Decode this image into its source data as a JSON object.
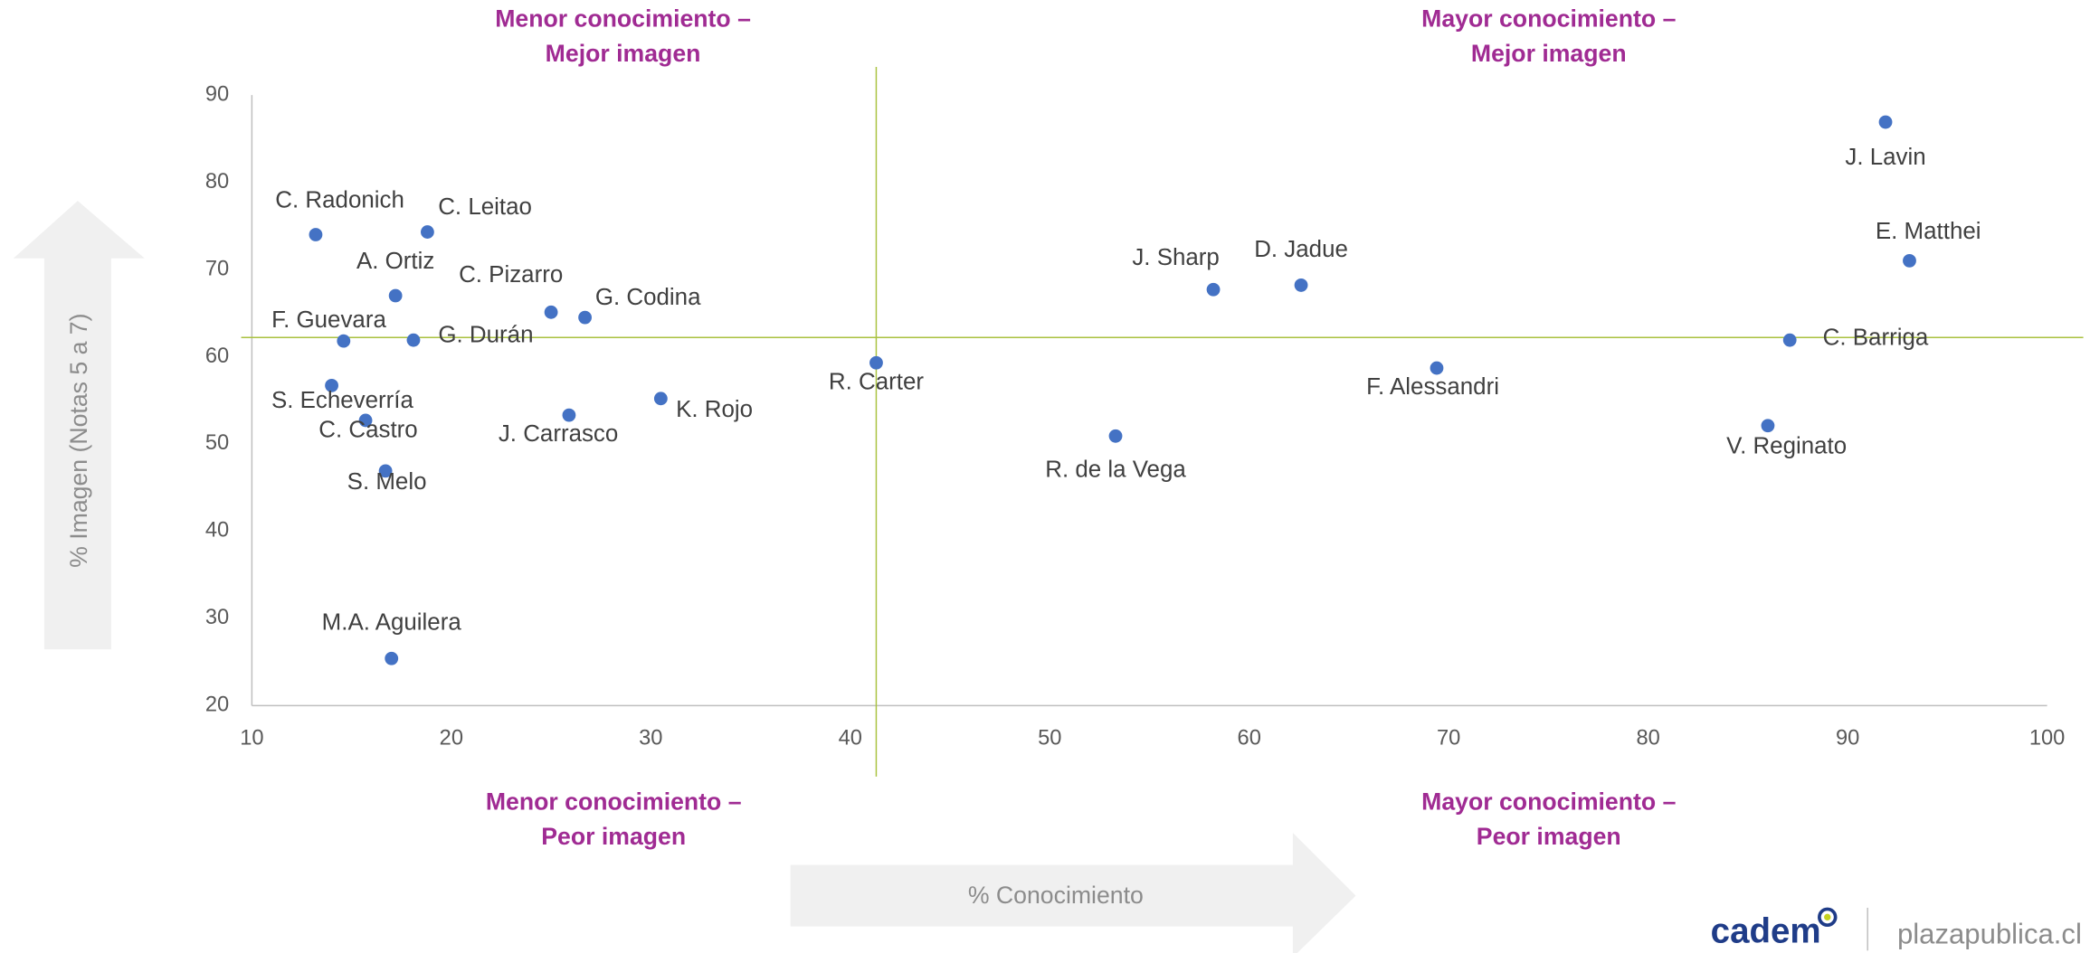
{
  "chart_data": {
    "type": "scatter",
    "x_label": "% Conocimiento",
    "y_label": "% Imagen (Notas 5 a 7)",
    "annotations": [
      [
        "Menor conocimiento –",
        "Mejor imagen"
      ],
      [
        "Mayor conocimiento –",
        "Mejor imagen"
      ],
      [
        "Menor conocimiento –",
        "Peor imagen"
      ],
      [
        "Mayor conocimiento –",
        "Peor imagen"
      ]
    ],
    "labels": [
      "C. Radonich",
      "C. Leitao",
      "A. Ortiz",
      "C. Pizarro",
      "G. Codina",
      "F. Guevara",
      "G. Durán",
      "S. Echeverría",
      "C. Castro",
      "S. Melo",
      "J. Carrasco",
      "K. Rojo",
      "M.A. Aguilera",
      "R. Carter",
      "R. de la Vega",
      "J. Sharp",
      "D. Jadue",
      "F. Alessandri",
      "J. Lavin",
      "E. Matthei",
      "C. Barriga",
      "V. Reginato"
    ],
    "x": [
      13.2,
      18.8,
      17.2,
      25.0,
      26.7,
      14.6,
      18.1,
      14.0,
      15.7,
      16.7,
      25.9,
      30.5,
      17.0,
      41.3,
      53.3,
      58.2,
      62.6,
      69.4,
      91.9,
      93.1,
      87.1,
      86.0
    ],
    "values": [
      74.0,
      74.3,
      67.0,
      65.1,
      64.5,
      61.8,
      61.9,
      56.7,
      52.7,
      46.9,
      53.3,
      55.2,
      25.4,
      59.3,
      50.9,
      67.7,
      68.2,
      58.7,
      86.9,
      71.0,
      61.9,
      52.1
    ],
    "color": "#4472c4",
    "reference_lines": {
      "x": 41.3,
      "y": 62.2,
      "color": "#a9c23f"
    },
    "xlim": [
      10,
      100
    ],
    "xticks": [
      10,
      20,
      30,
      40,
      50,
      60,
      70,
      80,
      90,
      100
    ],
    "ylim": [
      20,
      90
    ],
    "yticks": [
      20,
      30,
      40,
      50,
      60,
      70,
      80,
      90
    ],
    "grid": false
  },
  "logo": {
    "brand": "cadem",
    "site": "plazapublica.cl"
  }
}
